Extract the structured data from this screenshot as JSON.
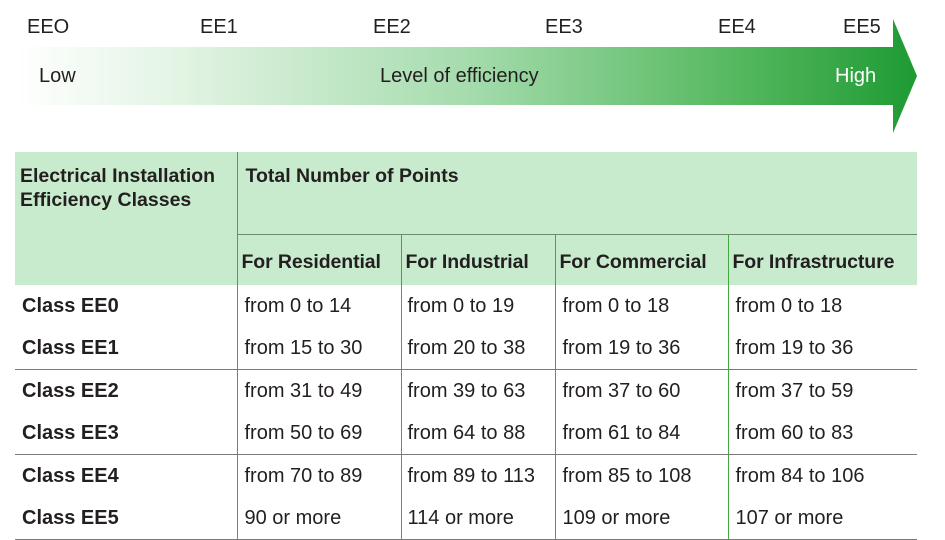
{
  "scale": {
    "labels": [
      "EEO",
      "EE1",
      "EE2",
      "EE3",
      "EE4",
      "EE5"
    ],
    "low_label": "Low",
    "middle_label": "Level of efficiency",
    "high_label": "High",
    "colors": {
      "arrow_start": "#ffffff",
      "arrow_end": "#1e9a33",
      "table_header_bg": "#c7ebcc",
      "divider_green": "#42a842"
    }
  },
  "table": {
    "corner_header": "Electrical Installation Efficiency Classes",
    "total_header": "Total Number of Points",
    "segments": [
      "For Residential",
      "For Industrial",
      "For Commercial",
      "For Infrastructure"
    ],
    "rows": [
      {
        "class": "Class EE0",
        "residential": "from 0 to 14",
        "industrial": "from 0 to 19",
        "commercial": "from 0 to 18",
        "infrastructure": "from 0 to 18"
      },
      {
        "class": "Class EE1",
        "residential": "from 15 to 30",
        "industrial": "from 20 to 38",
        "commercial": "from 19 to 36",
        "infrastructure": "from 19 to 36"
      },
      {
        "class": "Class EE2",
        "residential": "from 31 to 49",
        "industrial": "from 39 to 63",
        "commercial": "from 37 to 60",
        "infrastructure": "from 37 to 59"
      },
      {
        "class": "Class EE3",
        "residential": "from 50 to 69",
        "industrial": "from 64 to 88",
        "commercial": "from 61 to 84",
        "infrastructure": "from 60 to 83"
      },
      {
        "class": "Class EE4",
        "residential": "from 70 to 89",
        "industrial": "from 89 to 113",
        "commercial": "from 85 to 108",
        "infrastructure": "from 84 to 106"
      },
      {
        "class": "Class EE5",
        "residential": "90 or more",
        "industrial": "114 or more",
        "commercial": "109 or more",
        "infrastructure": "107 or more"
      }
    ]
  }
}
